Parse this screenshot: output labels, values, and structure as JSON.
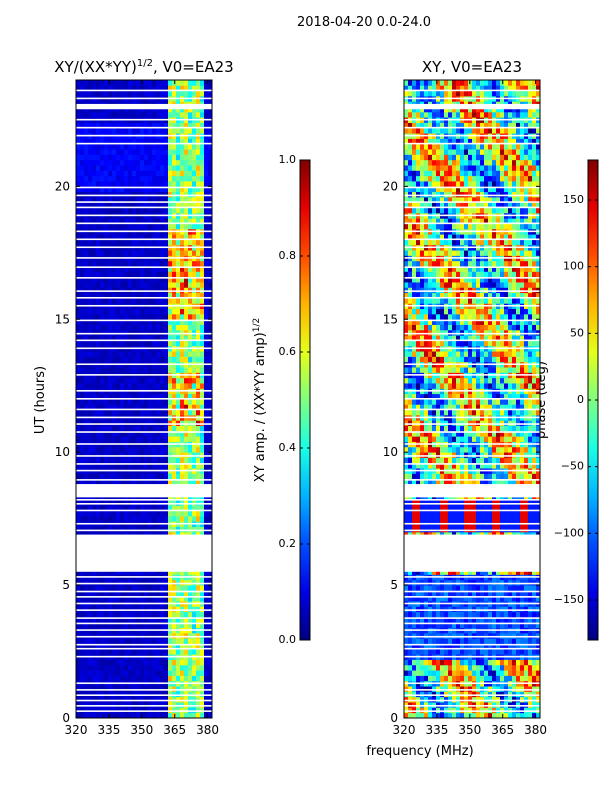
{
  "suptitle": "2018-04-20 0.0-24.0",
  "shared_xlabel": "frequency (MHz)",
  "chart_data": [
    {
      "type": "heatmap",
      "title_main": "XY/(XX*YY)",
      "title_sup": "1/2",
      "title_suffix": ", V0=EA23",
      "xlabel": "",
      "ylabel": "UT (hours)",
      "xlim": [
        320,
        382
      ],
      "ylim": [
        0,
        24
      ],
      "xticks": [
        320,
        335,
        350,
        365,
        380
      ],
      "yticks": [
        0,
        5,
        10,
        15,
        20
      ],
      "colorbar": {
        "label_main": "XY amp. / (XX*YY amp)",
        "label_sup": "1/2",
        "range": [
          0.0,
          1.0
        ],
        "ticks": [
          "0.0",
          "0.2",
          "0.4",
          "0.6",
          "0.8",
          "1.0"
        ],
        "colormap": "jet"
      },
      "data_gaps_hours": [
        [
          5.5,
          6.9
        ],
        [
          8.3,
          8.8
        ],
        [
          22.9,
          23.1
        ]
      ],
      "bright_band_mhz": [
        362,
        378
      ]
    },
    {
      "type": "heatmap",
      "title": "XY, V0=EA23",
      "xlabel": "",
      "ylabel": "",
      "xlim": [
        320,
        382
      ],
      "ylim": [
        0,
        24
      ],
      "xticks": [
        320,
        335,
        350,
        365,
        380
      ],
      "yticks": [
        0,
        5,
        10,
        15,
        20
      ],
      "colorbar": {
        "label": "phase (deg)",
        "range": [
          -180,
          180
        ],
        "ticks": [
          "150",
          "100",
          "50",
          "0",
          "−50",
          "−100",
          "−150"
        ],
        "colormap": "jet"
      },
      "data_gaps_hours": [
        [
          5.5,
          6.9
        ],
        [
          8.3,
          8.8
        ],
        [
          22.9,
          23.1
        ]
      ]
    }
  ],
  "colors": {
    "jet_dark_blue": "#00007f",
    "jet_blue": "#0000ff",
    "jet_cyan": "#00ffff",
    "jet_yellow": "#ffff00",
    "jet_red": "#ff0000",
    "jet_dark_red": "#7f0000"
  }
}
